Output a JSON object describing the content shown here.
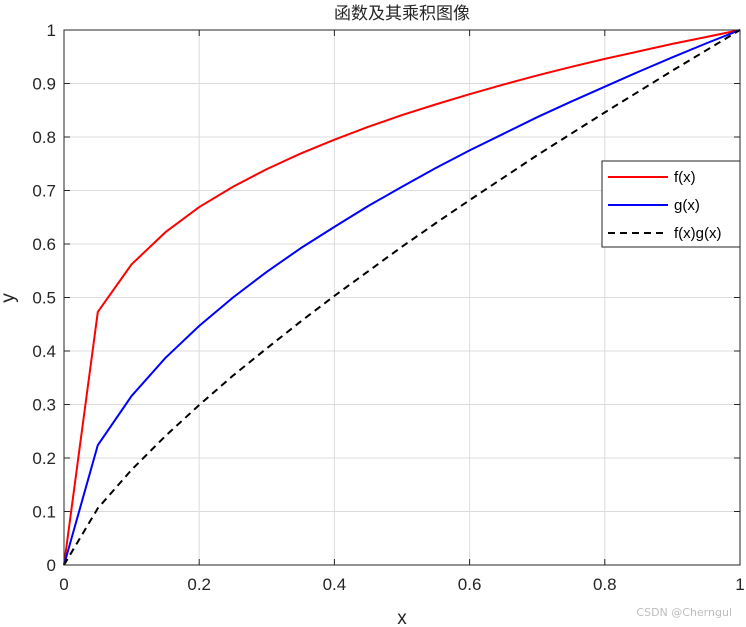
{
  "chart_data": {
    "type": "line",
    "title": "函数及其乘积图像",
    "xlabel": "x",
    "ylabel": "y",
    "xlim": [
      0,
      1
    ],
    "ylim": [
      0,
      1
    ],
    "xticks": [
      "0",
      "0.2",
      "0.4",
      "0.6",
      "0.8",
      "1"
    ],
    "yticks": [
      "0",
      "0.1",
      "0.2",
      "0.3",
      "0.4",
      "0.5",
      "0.6",
      "0.7",
      "0.8",
      "0.9",
      "1"
    ],
    "grid": true,
    "legend_position": "right",
    "x": [
      0,
      0.05,
      0.1,
      0.15,
      0.2,
      0.25,
      0.3,
      0.35,
      0.4,
      0.45,
      0.5,
      0.55,
      0.6,
      0.65,
      0.7,
      0.75,
      0.8,
      0.85,
      0.9,
      0.95,
      1
    ],
    "series": [
      {
        "name": "f(x)",
        "color": "#ff0000",
        "dash": "solid",
        "values": [
          0,
          0.473,
          0.562,
          0.622,
          0.669,
          0.707,
          0.74,
          0.769,
          0.795,
          0.819,
          0.841,
          0.861,
          0.88,
          0.898,
          0.915,
          0.931,
          0.946,
          0.96,
          0.974,
          0.987,
          1
        ]
      },
      {
        "name": "g(x)",
        "color": "#0000ff",
        "dash": "solid",
        "values": [
          0,
          0.224,
          0.316,
          0.387,
          0.447,
          0.5,
          0.548,
          0.592,
          0.632,
          0.671,
          0.707,
          0.742,
          0.775,
          0.806,
          0.837,
          0.866,
          0.894,
          0.922,
          0.949,
          0.975,
          1
        ]
      },
      {
        "name": "f(x)g(x)",
        "color": "#000000",
        "dash": "dashed",
        "values": [
          0,
          0.106,
          0.178,
          0.241,
          0.299,
          0.354,
          0.405,
          0.455,
          0.503,
          0.549,
          0.595,
          0.639,
          0.682,
          0.724,
          0.766,
          0.806,
          0.846,
          0.885,
          0.924,
          0.962,
          1
        ]
      }
    ]
  },
  "watermark": "CSDN @Cherngul"
}
